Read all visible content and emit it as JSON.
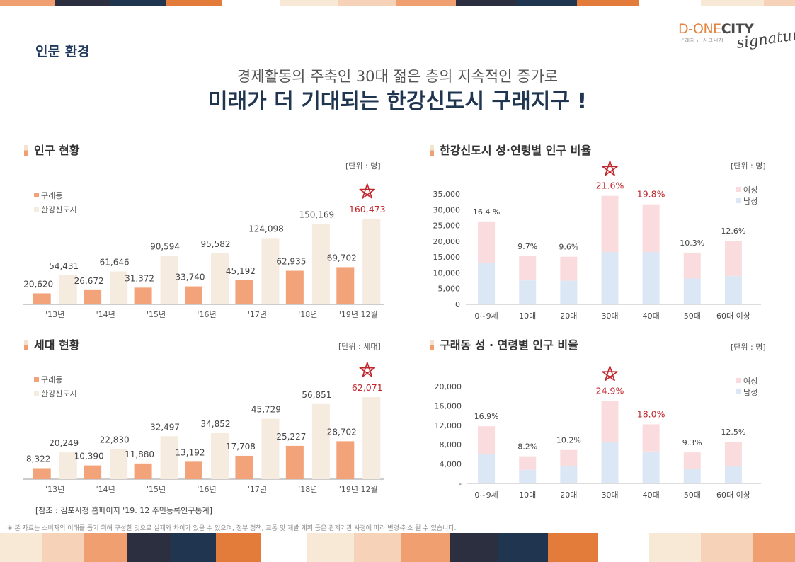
{
  "header": {
    "section_label": "인문 환경",
    "subtitle": "경제활동의 주축인 30대 젊은 층의 지속적인 증가로",
    "title": "미래가 더 기대되는 한강신도시 구래지구 !"
  },
  "logo": {
    "brand_prefix": "D-ONE",
    "brand_suffix": "CITY",
    "small_text": "구래지구 시그니처",
    "script": "signature"
  },
  "colors": {
    "guraedong": "#f3a37a",
    "hangang": "#f5ebdf",
    "female": "#fadcdf",
    "male": "#dce7f5",
    "highlight": "#c0272d",
    "title_mark_orange": "#f0a070",
    "title_mark_beige": "#f2e3d0"
  },
  "charts": {
    "population": {
      "title": "인구 현황",
      "unit": "[단위 : 명]"
    },
    "households": {
      "title": "세대 현황",
      "unit": "[단위 : 세대]"
    },
    "hangang_age": {
      "title": "한강신도시 성·연령별 인구 비율",
      "unit": "[단위 : 명]"
    },
    "guraedong_age": {
      "title": "구래동 성 · 연령별 인구 비율",
      "unit": "[단위 : 명]"
    }
  },
  "footnote": "[참조 : 김포시청 홈페이지 '19. 12 주민등록인구통계]",
  "disclaimer": "※ 본 자료는 소비자의 이해를 돕기 위해 구성한 것으로 실제와 차이가 있을 수 있으며, 정부 정책, 교통 및 개발 계획 등은 관계기관 사정에 따라 변경·취소 될 수 있습니다.",
  "chart_data": [
    {
      "type": "bar",
      "title": "인구 현황",
      "unit": "[단위 : 명]",
      "categories": [
        "'13년",
        "'14년",
        "'15년",
        "'16년",
        "'17년",
        "'18년",
        "'19년 12월"
      ],
      "series": [
        {
          "name": "구래동",
          "values": [
            20620,
            26672,
            31372,
            33740,
            45192,
            62935,
            69702
          ]
        },
        {
          "name": "한강신도시",
          "values": [
            54431,
            61646,
            90594,
            95582,
            124098,
            150169,
            160473
          ]
        }
      ],
      "labels": [
        [
          "20,620",
          "26,672",
          "31,372",
          "33,740",
          "45,192",
          "62,935",
          "69,702"
        ],
        [
          "54,431",
          "61,646",
          "90,594",
          "95,582",
          "124,098",
          "150,169",
          "160,473"
        ]
      ],
      "highlight": {
        "series": 1,
        "index": 6
      },
      "ylim": [
        0,
        175000
      ]
    },
    {
      "type": "bar",
      "title": "세대 현황",
      "unit": "[단위 : 세대]",
      "categories": [
        "'13년",
        "'14년",
        "'15년",
        "'16년",
        "'17년",
        "'18년",
        "'19년 12월"
      ],
      "series": [
        {
          "name": "구래동",
          "values": [
            8322,
            10390,
            11880,
            13192,
            17708,
            25227,
            28702
          ]
        },
        {
          "name": "한강신도시",
          "values": [
            20249,
            22830,
            32497,
            34852,
            45729,
            56851,
            62071
          ]
        }
      ],
      "labels": [
        [
          "8,322",
          "10,390",
          "11,880",
          "13,192",
          "17,708",
          "25,227",
          "28,702"
        ],
        [
          "20,249",
          "22,830",
          "32,497",
          "34,852",
          "45,729",
          "56,851",
          "62,071"
        ]
      ],
      "highlight": {
        "series": 1,
        "index": 6
      },
      "ylim": [
        0,
        68000
      ]
    },
    {
      "type": "bar",
      "stacked": true,
      "title": "한강신도시 성·연령별 인구 비율",
      "unit": "[단위 : 명]",
      "categories": [
        "0~9세",
        "10대",
        "20대",
        "30대",
        "40대",
        "50대",
        "60대 이상"
      ],
      "series": [
        {
          "name": "남성",
          "values": [
            13200,
            7600,
            7500,
            16600,
            16600,
            8200,
            9000
          ]
        },
        {
          "name": "여성",
          "values": [
            13100,
            7700,
            7600,
            17800,
            15100,
            8200,
            11200
          ]
        }
      ],
      "legend": [
        "여성",
        "남성"
      ],
      "percent_labels": [
        "16.4 %",
        "9.7%",
        "9.6%",
        "21.6%",
        "19.8%",
        "10.3%",
        "12.6%"
      ],
      "highlight_indices": [
        3,
        4
      ],
      "star_index": 3,
      "yticks": [
        0,
        5000,
        10000,
        15000,
        20000,
        25000,
        30000,
        35000
      ],
      "ytick_labels": [
        "0",
        "5,000",
        "10,000",
        "15,000",
        "20,000",
        "25,000",
        "30,000",
        "35,000"
      ],
      "ylim": [
        0,
        35000
      ]
    },
    {
      "type": "bar",
      "stacked": true,
      "title": "구래동 성 · 연령별 인구 비율",
      "unit": "[단위 : 명]",
      "categories": [
        "0~9세",
        "10대",
        "20대",
        "30대",
        "40대",
        "50대",
        "60대 이상"
      ],
      "series": [
        {
          "name": "남성",
          "values": [
            6000,
            2800,
            3500,
            8600,
            6600,
            3000,
            3600
          ]
        },
        {
          "name": "여성",
          "values": [
            5800,
            2800,
            3400,
            8400,
            5600,
            3400,
            5000
          ]
        }
      ],
      "legend": [
        "여성",
        "남성"
      ],
      "percent_labels": [
        "16.9%",
        "8.2%",
        "10.2%",
        "24.9%",
        "18.0%",
        "9.3%",
        "12.5%"
      ],
      "highlight_indices": [
        3,
        4
      ],
      "star_index": 3,
      "yticks": [
        0,
        4000,
        8000,
        12000,
        16000,
        20000
      ],
      "ytick_labels": [
        "-",
        "4,000",
        "8,000",
        "12,000",
        "16,000",
        "20,000"
      ],
      "ylim": [
        0,
        20000
      ]
    }
  ]
}
